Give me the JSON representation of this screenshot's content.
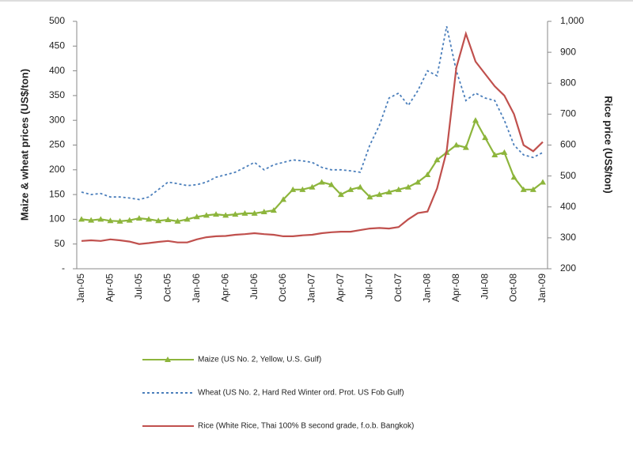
{
  "chart_data": {
    "type": "line",
    "y_label": "Maize & wheat prices (US$/ton)",
    "y2_label": "Rice price (US$/ton)",
    "categories": [
      "Jan-05",
      null,
      null,
      "Apr-05",
      null,
      null,
      "Jul-05",
      null,
      null,
      "Oct-05",
      null,
      null,
      "Jan-06",
      null,
      null,
      "Apr-06",
      null,
      null,
      "Jul-06",
      null,
      null,
      "Oct-06",
      null,
      null,
      "Jan-07",
      null,
      null,
      "Apr-07",
      null,
      null,
      "Jul-07",
      null,
      null,
      "Oct-07",
      null,
      null,
      "Jan-08",
      null,
      null,
      "Apr-08",
      null,
      null,
      "Jul-08",
      null,
      null,
      "Oct-08",
      null,
      null,
      "Jan-09"
    ],
    "ylim": [
      0,
      500
    ],
    "yticks": [
      {
        "value": 0,
        "label": "-"
      },
      50,
      100,
      150,
      200,
      250,
      300,
      350,
      400,
      450,
      500
    ],
    "y2lim": [
      200,
      1000
    ],
    "y2ticks": [
      200,
      300,
      400,
      500,
      600,
      700,
      800,
      900,
      {
        "value": 1000,
        "label": "1,000"
      }
    ],
    "legend": "bottom",
    "series": [
      {
        "name": "Maize (US No. 2, Yellow, U.S. Gulf)",
        "color": "#8db53c",
        "style": "solid-triangles",
        "values": [
          100,
          98,
          100,
          97,
          96,
          98,
          102,
          100,
          97,
          99,
          96,
          100,
          105,
          108,
          110,
          108,
          110,
          112,
          112,
          115,
          118,
          140,
          160,
          160,
          165,
          175,
          170,
          150,
          160,
          165,
          145,
          150,
          155,
          160,
          165,
          175,
          190,
          220,
          235,
          250,
          245,
          300,
          265,
          230,
          235,
          185,
          160,
          160,
          175
        ]
      },
      {
        "name": "Wheat (US No. 2, Hard Red Winter ord. Prot. US Fob Gulf)",
        "color": "#4a7ebb",
        "style": "dashed",
        "values": [
          155,
          150,
          152,
          145,
          145,
          143,
          140,
          145,
          160,
          175,
          172,
          168,
          170,
          175,
          185,
          190,
          195,
          205,
          215,
          200,
          210,
          215,
          220,
          218,
          215,
          205,
          200,
          200,
          198,
          195,
          250,
          290,
          345,
          355,
          330,
          360,
          400,
          390,
          490,
          400,
          340,
          355,
          345,
          340,
          300,
          250,
          230,
          225,
          235
        ]
      },
      {
        "name": "Rice (White Rice, Thai 100% B second grade, f.o.b. Bangkok)",
        "color": "#c0504d",
        "style": "solid",
        "axis": "y2",
        "values": [
          290,
          292,
          290,
          295,
          292,
          288,
          280,
          283,
          287,
          290,
          285,
          285,
          295,
          302,
          305,
          306,
          310,
          312,
          315,
          312,
          310,
          305,
          305,
          308,
          310,
          315,
          318,
          320,
          320,
          325,
          330,
          332,
          330,
          335,
          360,
          380,
          385,
          460,
          580,
          850,
          960,
          870,
          830,
          790,
          760,
          700,
          600,
          580,
          610
        ]
      }
    ]
  }
}
